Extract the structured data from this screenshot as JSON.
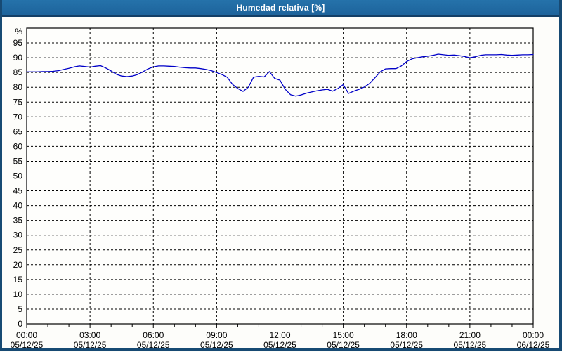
{
  "window": {
    "title": "Humedad relativa [%]"
  },
  "colors": {
    "titlebar": "#1e68a2",
    "titlebar_border": "#133f66",
    "frame_border": "#174a73",
    "background": "#fdfdfa",
    "plot_background": "#fefefc",
    "grid": "#000000",
    "axis": "#000000",
    "series_line": "#0000c8",
    "label_text": "#000000",
    "title_text": "#ffffff"
  },
  "chart_data": {
    "type": "line",
    "title": "Humedad relativa [%]",
    "grid": "dashed",
    "legend_position": "none",
    "y_axis": {
      "unit_label": "%",
      "min": 0,
      "max": 100,
      "tick_step": 5,
      "tick_values": [
        0,
        5,
        10,
        15,
        20,
        25,
        30,
        35,
        40,
        45,
        50,
        55,
        60,
        65,
        70,
        75,
        80,
        85,
        90,
        95
      ]
    },
    "x_axis": {
      "min_hours": 0,
      "max_hours": 24,
      "minor_tick_hours": 1,
      "major_tick_hours": 3,
      "ticks": [
        {
          "hours": 0,
          "time": "00:00",
          "date": "05/12/25"
        },
        {
          "hours": 3,
          "time": "03:00",
          "date": "05/12/25"
        },
        {
          "hours": 6,
          "time": "06:00",
          "date": "05/12/25"
        },
        {
          "hours": 9,
          "time": "09:00",
          "date": "05/12/25"
        },
        {
          "hours": 12,
          "time": "12:00",
          "date": "05/12/25"
        },
        {
          "hours": 15,
          "time": "15:00",
          "date": "05/12/25"
        },
        {
          "hours": 18,
          "time": "18:00",
          "date": "05/12/25"
        },
        {
          "hours": 21,
          "time": "21:00",
          "date": "05/12/25"
        },
        {
          "hours": 24,
          "time": "00:00",
          "date": "06/12/25"
        }
      ]
    },
    "series": [
      {
        "name": "Humedad relativa [%]",
        "color": "#0000c8",
        "points": [
          [
            0.0,
            85.2
          ],
          [
            0.25,
            85.2
          ],
          [
            0.5,
            85.2
          ],
          [
            0.75,
            85.3
          ],
          [
            1.0,
            85.3
          ],
          [
            1.25,
            85.4
          ],
          [
            1.5,
            85.6
          ],
          [
            1.75,
            86.0
          ],
          [
            2.0,
            86.4
          ],
          [
            2.25,
            86.9
          ],
          [
            2.5,
            87.2
          ],
          [
            2.75,
            87.0
          ],
          [
            3.0,
            86.8
          ],
          [
            3.25,
            87.1
          ],
          [
            3.5,
            87.3
          ],
          [
            3.75,
            86.5
          ],
          [
            4.0,
            85.5
          ],
          [
            4.25,
            84.4
          ],
          [
            4.5,
            83.8
          ],
          [
            4.75,
            83.6
          ],
          [
            5.0,
            83.8
          ],
          [
            5.25,
            84.3
          ],
          [
            5.5,
            85.2
          ],
          [
            5.75,
            86.2
          ],
          [
            6.0,
            86.9
          ],
          [
            6.25,
            87.2
          ],
          [
            6.5,
            87.2
          ],
          [
            6.75,
            87.1
          ],
          [
            7.0,
            87.0
          ],
          [
            7.25,
            86.8
          ],
          [
            7.5,
            86.6
          ],
          [
            7.75,
            86.5
          ],
          [
            8.0,
            86.5
          ],
          [
            8.25,
            86.3
          ],
          [
            8.5,
            86.0
          ],
          [
            8.75,
            85.6
          ],
          [
            9.0,
            85.0
          ],
          [
            9.25,
            84.3
          ],
          [
            9.5,
            83.4
          ],
          [
            9.75,
            81.0
          ],
          [
            10.0,
            79.6
          ],
          [
            10.25,
            78.6
          ],
          [
            10.5,
            80.0
          ],
          [
            10.75,
            83.4
          ],
          [
            11.0,
            83.7
          ],
          [
            11.25,
            83.5
          ],
          [
            11.5,
            85.3
          ],
          [
            11.75,
            83.0
          ],
          [
            12.0,
            82.4
          ],
          [
            12.25,
            79.3
          ],
          [
            12.5,
            77.5
          ],
          [
            12.75,
            77.0
          ],
          [
            13.0,
            77.4
          ],
          [
            13.25,
            78.0
          ],
          [
            13.5,
            78.4
          ],
          [
            13.75,
            78.8
          ],
          [
            14.0,
            79.1
          ],
          [
            14.25,
            79.3
          ],
          [
            14.5,
            78.7
          ],
          [
            14.75,
            79.6
          ],
          [
            15.0,
            80.9
          ],
          [
            15.25,
            77.9
          ],
          [
            15.5,
            78.7
          ],
          [
            15.75,
            79.3
          ],
          [
            16.0,
            80.1
          ],
          [
            16.25,
            81.3
          ],
          [
            16.5,
            83.2
          ],
          [
            16.75,
            85.2
          ],
          [
            17.0,
            86.2
          ],
          [
            17.25,
            86.3
          ],
          [
            17.5,
            86.3
          ],
          [
            17.75,
            87.2
          ],
          [
            18.0,
            88.7
          ],
          [
            18.25,
            89.6
          ],
          [
            18.5,
            90.0
          ],
          [
            18.75,
            90.3
          ],
          [
            19.0,
            90.5
          ],
          [
            19.25,
            90.8
          ],
          [
            19.5,
            91.2
          ],
          [
            19.75,
            91.0
          ],
          [
            20.0,
            90.8
          ],
          [
            20.25,
            90.9
          ],
          [
            20.5,
            90.7
          ],
          [
            20.75,
            90.4
          ],
          [
            21.0,
            90.0
          ],
          [
            21.25,
            90.3
          ],
          [
            21.5,
            90.8
          ],
          [
            21.75,
            91.0
          ],
          [
            22.0,
            91.0
          ],
          [
            22.25,
            91.0
          ],
          [
            22.5,
            91.1
          ],
          [
            22.75,
            90.9
          ],
          [
            23.0,
            90.8
          ],
          [
            23.25,
            90.9
          ],
          [
            23.5,
            91.0
          ],
          [
            23.75,
            91.0
          ],
          [
            24.0,
            91.1
          ]
        ]
      }
    ]
  }
}
